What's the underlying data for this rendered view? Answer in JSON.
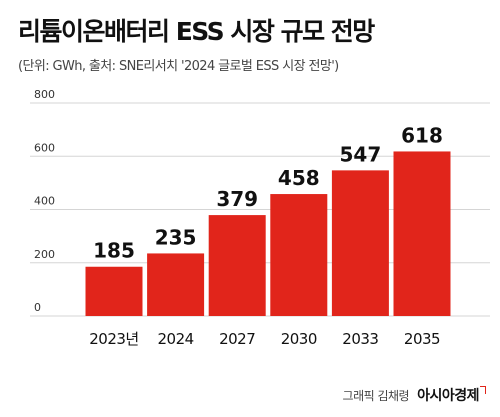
{
  "title": "리튬이온배터리 ESS 시장 규모 전망",
  "subtitle": "(단위: GWh, 출처: SNE리서치 '2024 글로벌 ESS 시장 전망')",
  "credit": "그래픽 김채령",
  "brand": "아시아경제",
  "colors": {
    "bar": "#e1251b",
    "grid": "#d5d5d5",
    "text": "#111111",
    "axis_text": "#333333"
  },
  "chart_data": {
    "type": "bar",
    "categories": [
      "2023년",
      "2024",
      "2027",
      "2030",
      "2033",
      "2035"
    ],
    "values": [
      185,
      235,
      379,
      458,
      547,
      618
    ],
    "data_labels": [
      "185",
      "235",
      "379",
      "458",
      "547",
      "618"
    ],
    "title": "리튬이온배터리 ESS 시장 규모 전망",
    "ylabel": "",
    "xlabel": "",
    "ylim": [
      0,
      800
    ],
    "yticks": [
      "0",
      "200",
      "400",
      "600",
      "800"
    ],
    "grid": true
  }
}
